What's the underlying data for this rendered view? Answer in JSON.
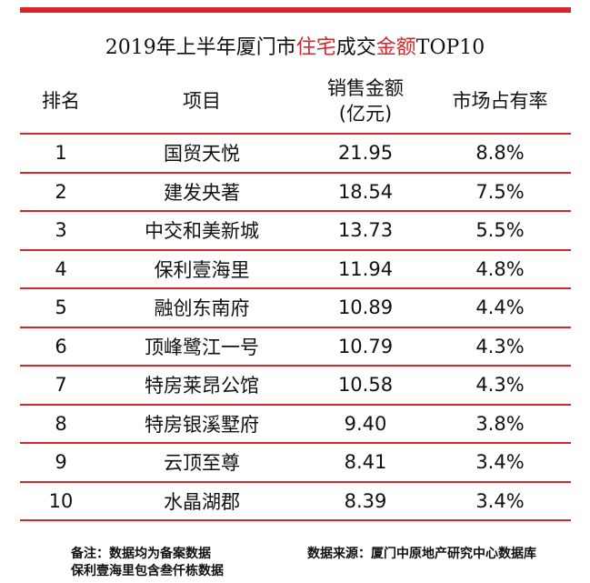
{
  "title": {
    "parts": [
      "2019年上半年厦门市",
      "住宅",
      "成交",
      "金额",
      "TOP10"
    ]
  },
  "table": {
    "header": [
      "排名",
      "项目",
      "销售金额",
      "(亿元)",
      "市场占有率"
    ],
    "rows": [
      [
        "1",
        "国贸天悦",
        "21.95",
        "8.8%"
      ],
      [
        "2",
        "建发央著",
        "18.54",
        "7.5%"
      ],
      [
        "3",
        "中交和美新城",
        "13.73",
        "5.5%"
      ],
      [
        "4",
        "保利壹海里",
        "11.94",
        "4.8%"
      ],
      [
        "5",
        "融创东南府",
        "10.89",
        "4.4%"
      ],
      [
        "6",
        "顶峰鹭江一号",
        "10.79",
        "4.3%"
      ],
      [
        "7",
        "特房莱昂公馆",
        "10.58",
        "4.3%"
      ],
      [
        "8",
        "特房银溪墅府",
        "9.40",
        "3.8%"
      ],
      [
        "9",
        "云顶至尊",
        "8.41",
        "3.4%"
      ],
      [
        "10",
        "水晶湖郡",
        "8.39",
        "3.4%"
      ]
    ]
  },
  "notes": {
    "left": [
      "备注：数据均为备案数据",
      "保利壹海里包含叁仟栋数据"
    ],
    "right": "数据来源：厦门中原地产研究中心数据库"
  }
}
